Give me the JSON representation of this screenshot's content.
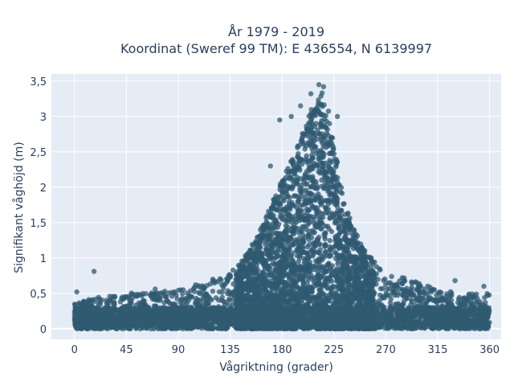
{
  "chart_data": {
    "type": "scatter",
    "title_line1": "År 1979 - 2019",
    "title_line2": "Koordinat (Sweref 99 TM): E 436554, N 6139997",
    "xlabel": "Vågriktning (grader)",
    "ylabel": "Signifikant våghöjd (m)",
    "xlim": [
      -20,
      370
    ],
    "ylim": [
      -0.15,
      3.6
    ],
    "x_ticks": [
      0,
      45,
      90,
      135,
      180,
      225,
      270,
      315,
      360
    ],
    "x_tick_labels": [
      "0",
      "45",
      "90",
      "135",
      "180",
      "225",
      "270",
      "315",
      "360"
    ],
    "y_ticks": [
      0,
      0.5,
      1,
      1.5,
      2,
      2.5,
      3,
      3.5
    ],
    "y_tick_labels": [
      "0",
      "0,5",
      "1",
      "1,5",
      "2",
      "2,5",
      "3",
      "3,5"
    ],
    "grid": true,
    "marker_color": "#2f5a70",
    "plot_bg": "#e5ecf6",
    "envelope": {
      "x": [
        0,
        20,
        45,
        90,
        110,
        130,
        145,
        160,
        170,
        180,
        190,
        200,
        205,
        210,
        215,
        220,
        225,
        230,
        240,
        250,
        260,
        270,
        290,
        315,
        340,
        360
      ],
      "y": [
        0.35,
        0.45,
        0.5,
        0.55,
        0.62,
        0.75,
        0.95,
        1.35,
        1.75,
        2.1,
        2.45,
        2.85,
        3.1,
        3.25,
        3.35,
        3.1,
        2.7,
        2.1,
        1.5,
        1.15,
        0.95,
        0.8,
        0.7,
        0.55,
        0.5,
        0.5
      ]
    },
    "outliers": [
      {
        "x": 17,
        "y": 0.81
      },
      {
        "x": 2,
        "y": 0.52
      },
      {
        "x": 212,
        "y": 3.45
      },
      {
        "x": 216,
        "y": 3.42
      },
      {
        "x": 205,
        "y": 3.32
      },
      {
        "x": 188,
        "y": 3.0
      },
      {
        "x": 196,
        "y": 3.15
      },
      {
        "x": 178,
        "y": 2.95
      },
      {
        "x": 228,
        "y": 3.0
      },
      {
        "x": 170,
        "y": 2.3
      },
      {
        "x": 330,
        "y": 0.68
      },
      {
        "x": 355,
        "y": 0.6
      },
      {
        "x": 105,
        "y": 0.62
      },
      {
        "x": 70,
        "y": 0.56
      },
      {
        "x": 120,
        "y": 0.7
      }
    ]
  }
}
